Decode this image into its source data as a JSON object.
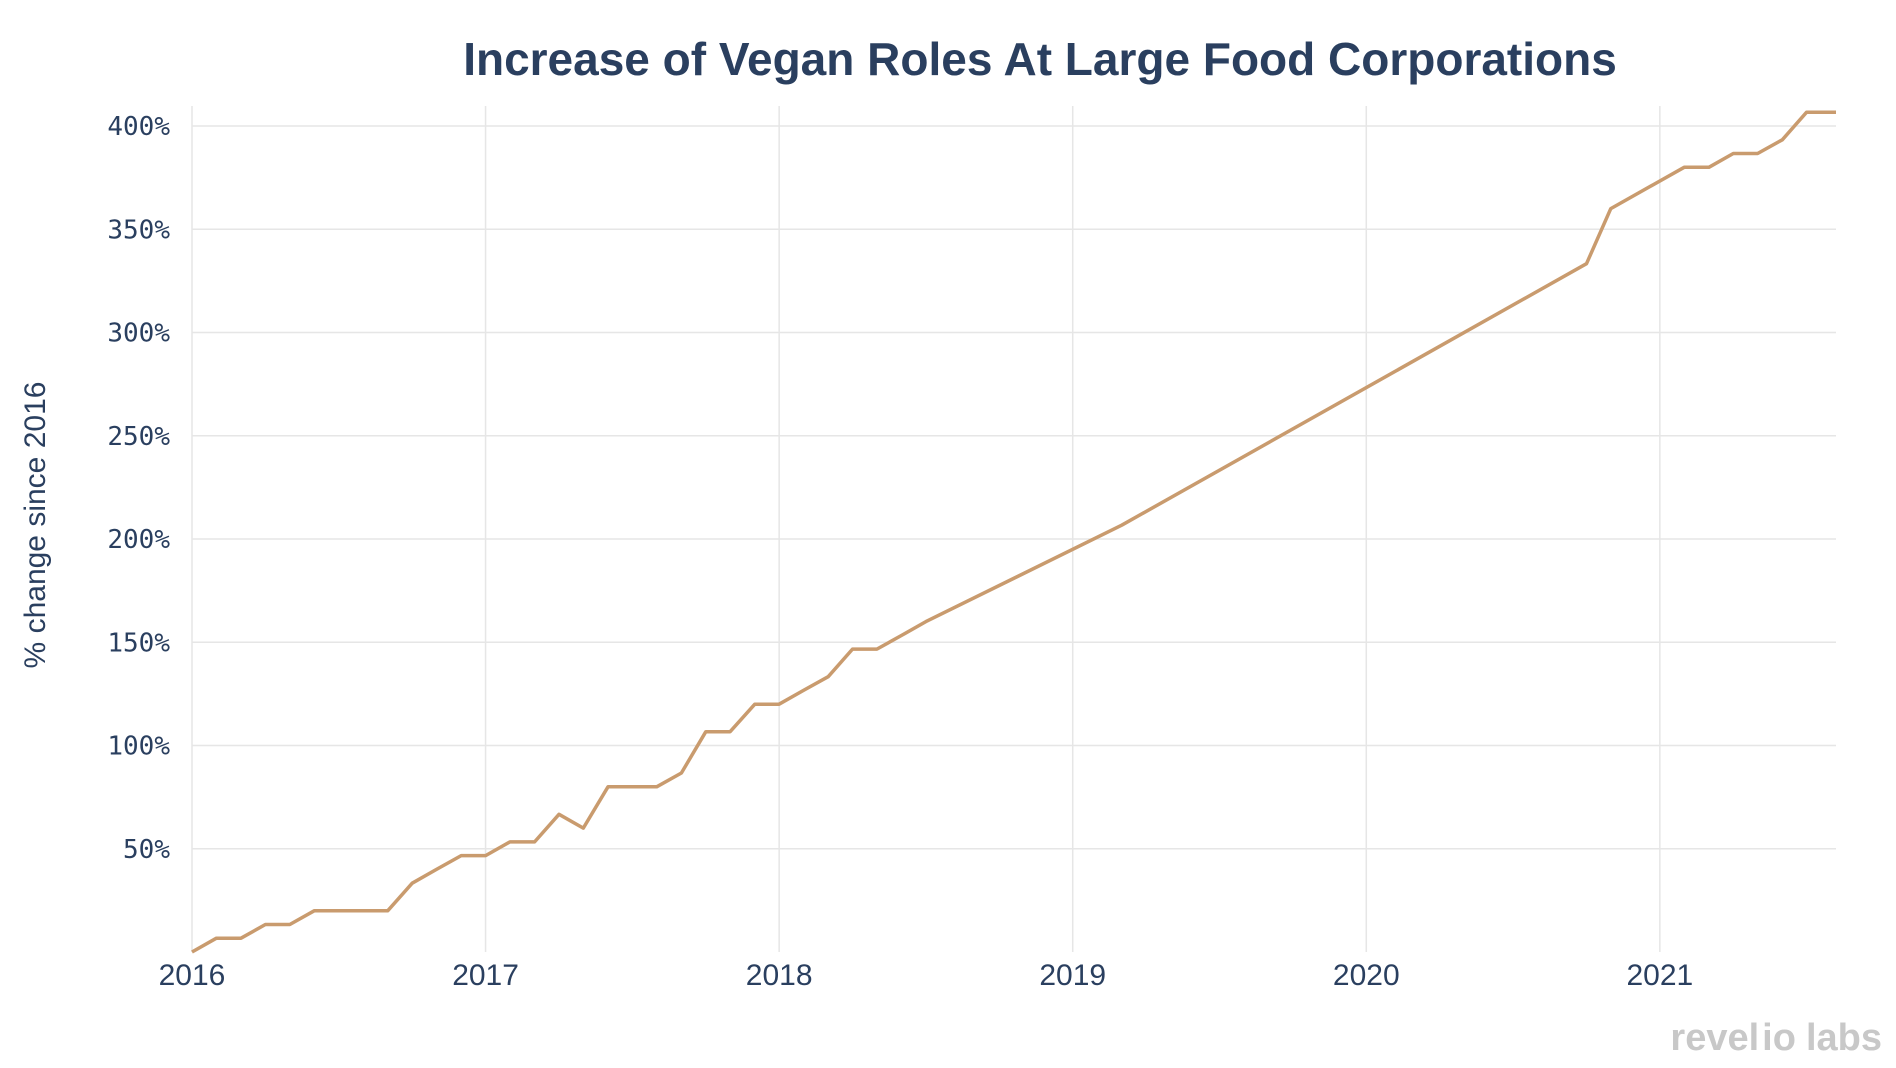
{
  "chart_data": {
    "type": "line",
    "title": "Increase of Vegan Roles At Large Food Corporations",
    "xlabel": "",
    "ylabel": "% change since 2016",
    "xlim": [
      2016,
      2021.6
    ],
    "ylim": [
      0,
      400
    ],
    "x_ticks": [
      {
        "value": 2016,
        "label": "2016"
      },
      {
        "value": 2017,
        "label": "2017"
      },
      {
        "value": 2018,
        "label": "2018"
      },
      {
        "value": 2019,
        "label": "2019"
      },
      {
        "value": 2020,
        "label": "2020"
      },
      {
        "value": 2021,
        "label": "2021"
      }
    ],
    "y_ticks": [
      {
        "value": 50,
        "label": "50%"
      },
      {
        "value": 100,
        "label": "100%"
      },
      {
        "value": 150,
        "label": "150%"
      },
      {
        "value": 200,
        "label": "200%"
      },
      {
        "value": 250,
        "label": "250%"
      },
      {
        "value": 300,
        "label": "300%"
      },
      {
        "value": 350,
        "label": "350%"
      },
      {
        "value": 400,
        "label": "400%"
      }
    ],
    "grid": true,
    "series": [
      {
        "name": "Vegan roles",
        "color": "#c99b6e",
        "x": [
          2016.0,
          2016.083,
          2016.167,
          2016.25,
          2016.333,
          2016.417,
          2016.5,
          2016.583,
          2016.667,
          2016.75,
          2016.833,
          2016.917,
          2017.0,
          2017.083,
          2017.167,
          2017.25,
          2017.333,
          2017.417,
          2017.5,
          2017.583,
          2017.667,
          2017.75,
          2017.833,
          2017.917,
          2018.0,
          2018.083,
          2018.167,
          2018.25,
          2018.333,
          2018.417,
          2018.5,
          2019.167,
          2020.75,
          2020.833,
          2021.083,
          2021.167,
          2021.25,
          2021.333,
          2021.417,
          2021.5,
          2021.6
        ],
        "values": [
          0,
          6.7,
          6.7,
          13.3,
          13.3,
          20,
          20,
          20,
          20,
          33.3,
          40,
          46.7,
          46.7,
          53.3,
          53.3,
          66.7,
          60,
          80,
          80,
          80,
          86.7,
          106.7,
          106.7,
          120,
          120,
          126.7,
          133.3,
          146.7,
          146.7,
          153.3,
          160,
          206.7,
          333.3,
          360,
          380,
          380,
          386.7,
          386.7,
          393.3,
          406.7,
          406.7
        ]
      }
    ]
  },
  "brand": {
    "logo_text": "revelio labs"
  }
}
